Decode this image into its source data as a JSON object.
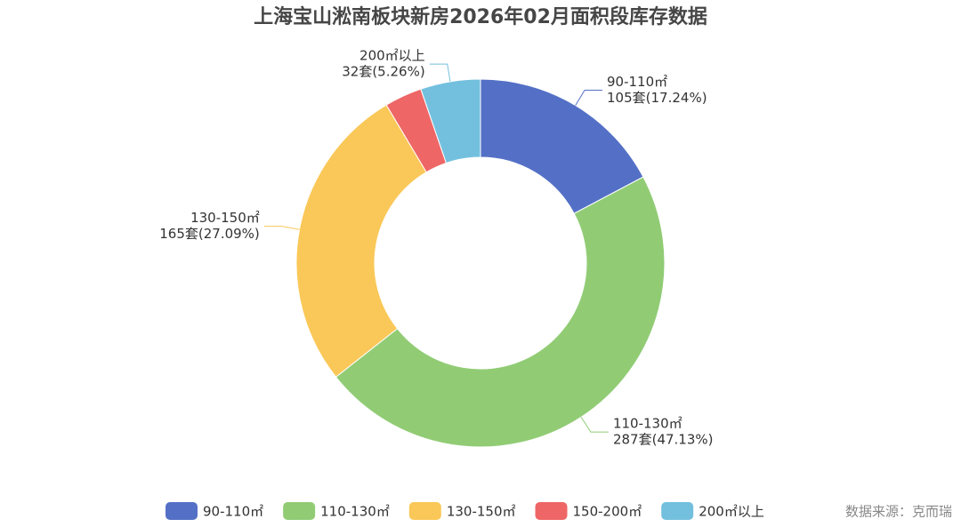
{
  "chart_data": {
    "type": "donut",
    "title": "上海宝山淞南板块新房2026年02月面积段库存数据",
    "categories": [
      "90-110㎡",
      "110-130㎡",
      "130-150㎡",
      "150-200㎡",
      "200㎡以上"
    ],
    "values": [
      105,
      287,
      165,
      20,
      32
    ],
    "value_labels": [
      "105套(17.24%)",
      "287套(47.13%)",
      "165套(27.09%)",
      null,
      "32套(5.26%)"
    ],
    "colors": [
      "#5470c6",
      "#91cc75",
      "#fac858",
      "#ee6666",
      "#73c0de"
    ],
    "source": "数据来源：克而瑞"
  }
}
